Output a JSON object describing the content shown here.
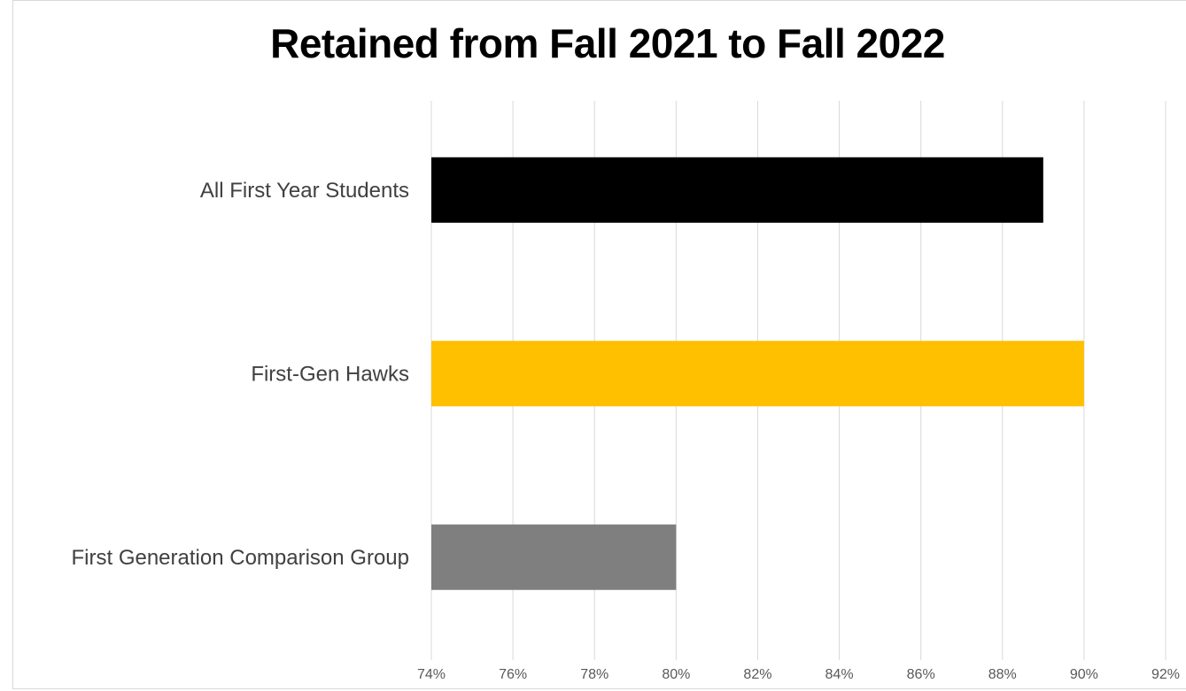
{
  "chart_data": {
    "type": "bar",
    "orientation": "horizontal",
    "title": "Retained from Fall 2021 to Fall 2022",
    "categories": [
      "All First Year Students",
      "First-Gen Hawks",
      "First Generation Comparison Group"
    ],
    "values": [
      89,
      90,
      80
    ],
    "colors": [
      "#000000",
      "#FFC000",
      "#7F7F7F"
    ],
    "xlim": [
      74,
      92
    ],
    "x_ticks": [
      74,
      76,
      78,
      80,
      82,
      84,
      86,
      88,
      90,
      92
    ],
    "x_tick_labels": [
      "74%",
      "76%",
      "78%",
      "80%",
      "82%",
      "84%",
      "86%",
      "88%",
      "90%",
      "92%"
    ],
    "grid": "vertical",
    "legend": "none",
    "xlabel": "",
    "ylabel": ""
  }
}
